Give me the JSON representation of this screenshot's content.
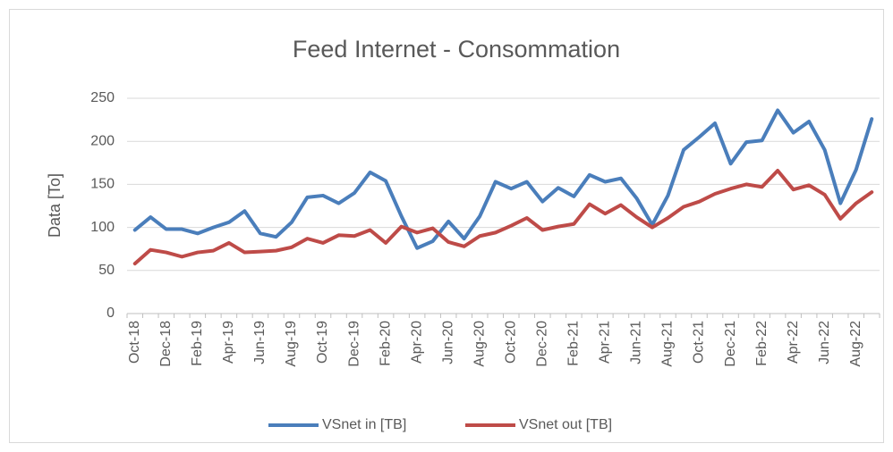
{
  "chart_data": {
    "type": "line",
    "title": "Feed Internet - Consommation",
    "y_label": "Data [To]",
    "categories": [
      "Oct-18",
      null,
      "Dec-18",
      null,
      "Feb-19",
      null,
      "Apr-19",
      null,
      "Jun-19",
      null,
      "Aug-19",
      null,
      "Oct-19",
      null,
      "Dec-19",
      null,
      "Feb-20",
      null,
      "Apr-20",
      null,
      "Jun-20",
      null,
      "Aug-20",
      null,
      "Oct-20",
      null,
      "Dec-20",
      null,
      "Feb-21",
      null,
      "Apr-21",
      null,
      "Jun-21",
      null,
      "Aug-21",
      null,
      "Oct-21",
      null,
      "Dec-21",
      null,
      "Feb-22",
      null,
      "Apr-22",
      null,
      "Jun-22",
      null,
      "Aug-22",
      null
    ],
    "series": [
      {
        "name": "VSnet in [TB]",
        "color": "#4a7ebb",
        "values": [
          97,
          112,
          98,
          98,
          93,
          100,
          106,
          119,
          93,
          89,
          106,
          135,
          137,
          128,
          140,
          164,
          154,
          113,
          76,
          84,
          107,
          87,
          113,
          153,
          145,
          153,
          130,
          146,
          136,
          161,
          153,
          157,
          134,
          103,
          137,
          190,
          205,
          221,
          174,
          199,
          201,
          236,
          210,
          223,
          190,
          128,
          167,
          226
        ]
      },
      {
        "name": "VSnet out [TB]",
        "color": "#be4b48",
        "values": [
          58,
          74,
          71,
          66,
          71,
          73,
          82,
          71,
          72,
          73,
          77,
          87,
          82,
          91,
          90,
          97,
          82,
          101,
          94,
          99,
          83,
          78,
          90,
          94,
          102,
          111,
          97,
          101,
          104,
          127,
          116,
          126,
          112,
          100,
          111,
          124,
          130,
          139,
          145,
          150,
          147,
          166,
          144,
          149,
          138,
          110,
          128,
          141
        ]
      }
    ],
    "ylim": [
      0,
      250
    ],
    "yticks": [
      0,
      50,
      100,
      150,
      200,
      250
    ],
    "grid": true,
    "legend": "bottom"
  }
}
